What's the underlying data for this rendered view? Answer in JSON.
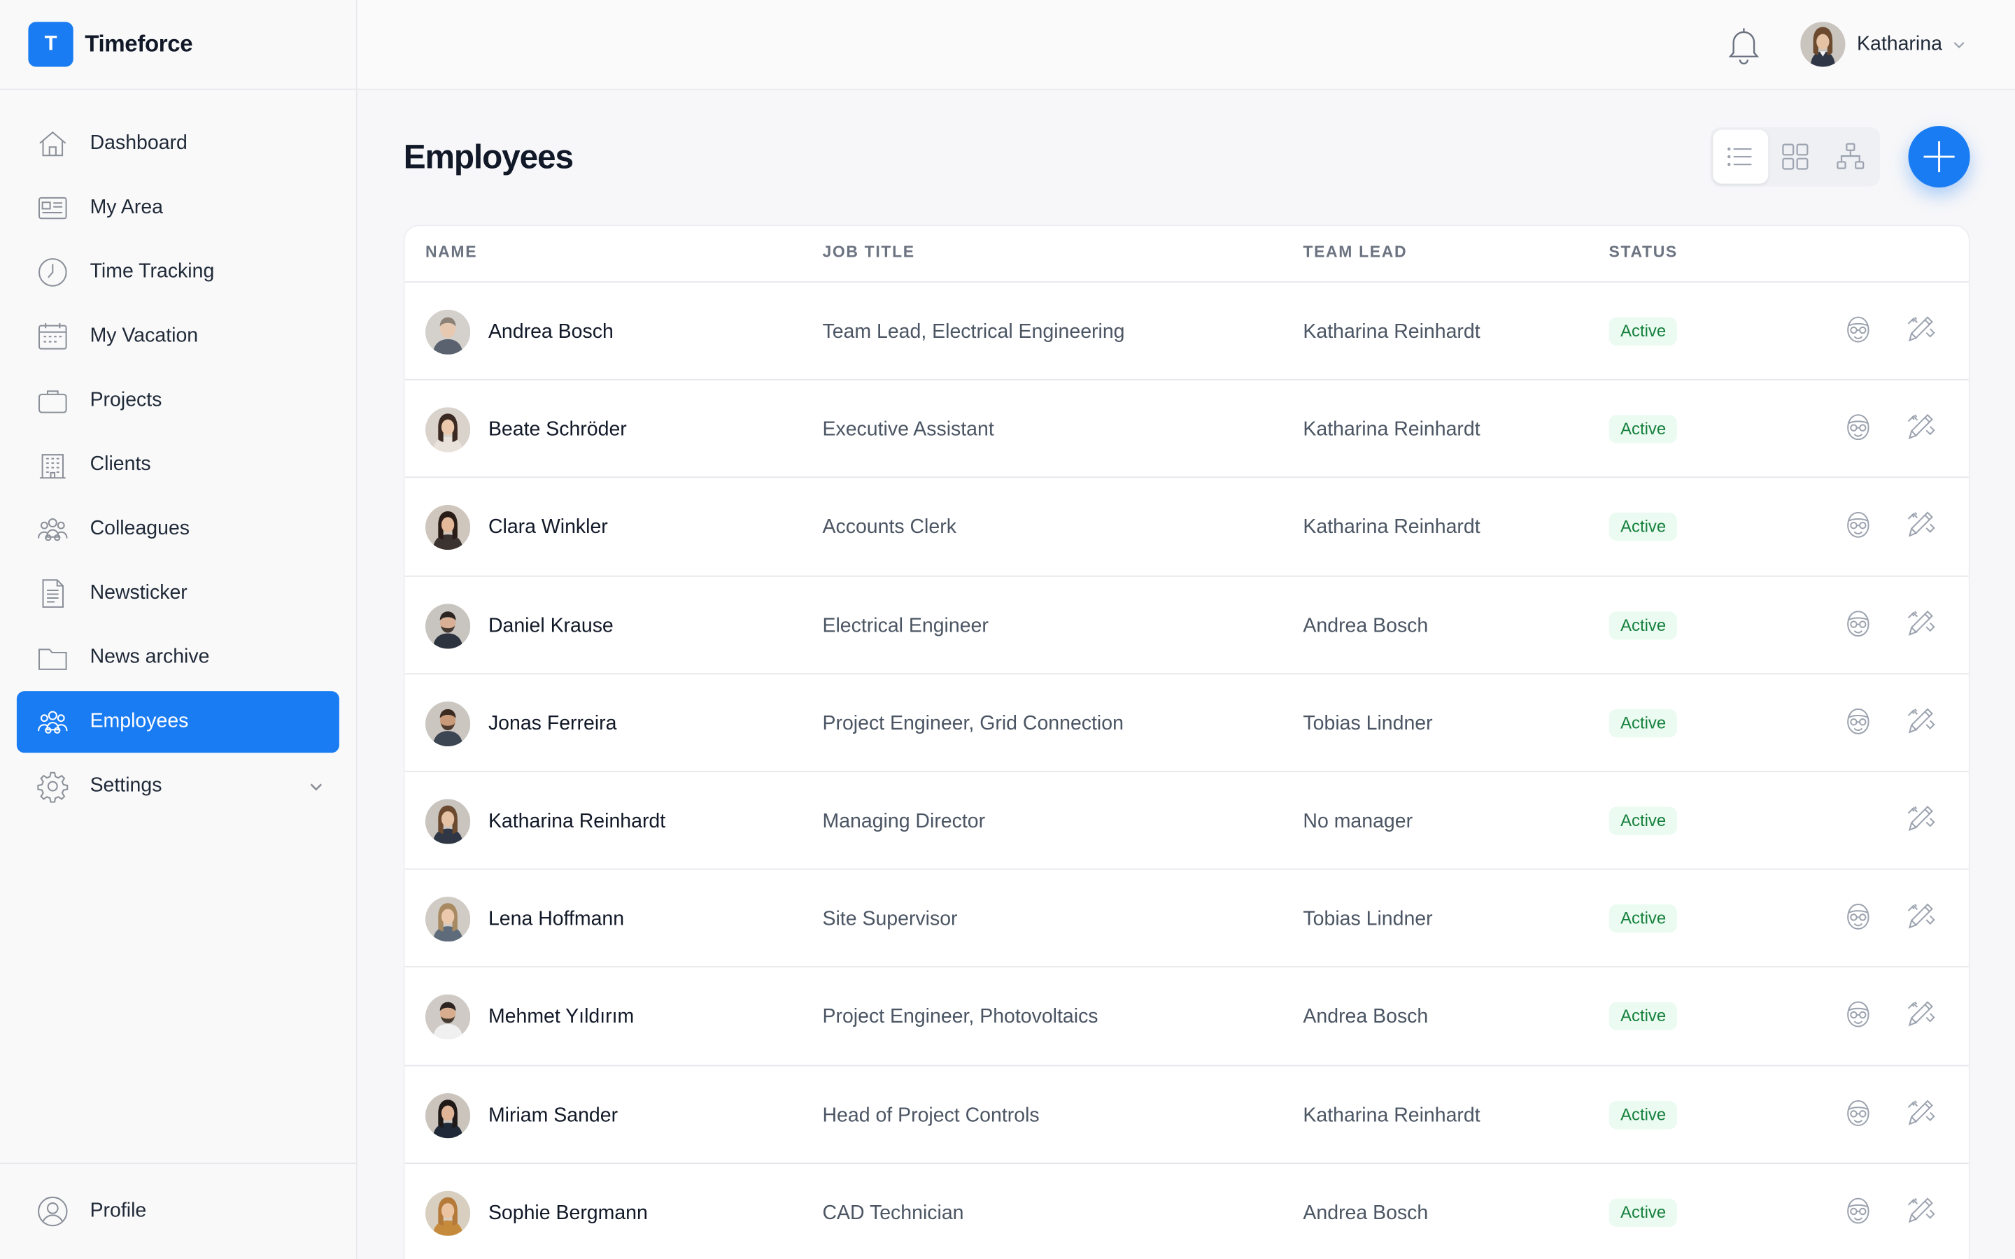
{
  "app": {
    "logo_letter": "T",
    "name": "Timeforce"
  },
  "sidebar": {
    "items": [
      {
        "label": "Dashboard",
        "icon": "home-icon",
        "active": false
      },
      {
        "label": "My Area",
        "icon": "id-card-icon",
        "active": false
      },
      {
        "label": "Time Tracking",
        "icon": "clock-icon",
        "active": false
      },
      {
        "label": "My Vacation",
        "icon": "calendar-icon",
        "active": false
      },
      {
        "label": "Projects",
        "icon": "briefcase-icon",
        "active": false
      },
      {
        "label": "Clients",
        "icon": "building-icon",
        "active": false
      },
      {
        "label": "Colleagues",
        "icon": "group-icon",
        "active": false
      },
      {
        "label": "Newsticker",
        "icon": "document-icon",
        "active": false
      },
      {
        "label": "News archive",
        "icon": "folder-icon",
        "active": false
      },
      {
        "label": "Employees",
        "icon": "group-icon",
        "active": true
      },
      {
        "label": "Settings",
        "icon": "gear-icon",
        "active": false,
        "has_submenu": true
      }
    ],
    "footer": {
      "label": "Profile",
      "icon": "user-circle-icon"
    }
  },
  "topbar": {
    "user_name": "Katharina"
  },
  "page": {
    "title": "Employees"
  },
  "view_toggle": [
    {
      "name": "list-view",
      "active": true
    },
    {
      "name": "grid-view",
      "active": false
    },
    {
      "name": "org-chart-view",
      "active": false
    }
  ],
  "table": {
    "columns": [
      "NAME",
      "JOB TITLE",
      "TEAM LEAD",
      "STATUS"
    ],
    "rows": [
      {
        "name": "Andrea Bosch",
        "job": "Team Lead, Electrical Engineering",
        "lead": "Katharina Reinhardt",
        "status": "Active",
        "impersonate": true
      },
      {
        "name": "Beate Schröder",
        "job": "Executive Assistant",
        "lead": "Katharina Reinhardt",
        "status": "Active",
        "impersonate": true
      },
      {
        "name": "Clara Winkler",
        "job": "Accounts Clerk",
        "lead": "Katharina Reinhardt",
        "status": "Active",
        "impersonate": true
      },
      {
        "name": "Daniel Krause",
        "job": "Electrical Engineer",
        "lead": "Andrea Bosch",
        "status": "Active",
        "impersonate": true
      },
      {
        "name": "Jonas Ferreira",
        "job": "Project Engineer, Grid Connection",
        "lead": "Tobias Lindner",
        "status": "Active",
        "impersonate": true
      },
      {
        "name": "Katharina Reinhardt",
        "job": "Managing Director",
        "lead": "No manager",
        "status": "Active",
        "impersonate": false
      },
      {
        "name": "Lena Hoffmann",
        "job": "Site Supervisor",
        "lead": "Tobias Lindner",
        "status": "Active",
        "impersonate": true
      },
      {
        "name": "Mehmet Yıldırım",
        "job": "Project Engineer, Photovoltaics",
        "lead": "Andrea Bosch",
        "status": "Active",
        "impersonate": true
      },
      {
        "name": "Miriam Sander",
        "job": "Head of Project Controls",
        "lead": "Katharina Reinhardt",
        "status": "Active",
        "impersonate": true
      },
      {
        "name": "Sophie Bergmann",
        "job": "CAD Technician",
        "lead": "Andrea Bosch",
        "status": "Active",
        "impersonate": true
      }
    ]
  },
  "colors": {
    "accent": "#1a7cf2",
    "status_active_bg": "#ecfbf1",
    "status_active_text": "#15803d"
  }
}
